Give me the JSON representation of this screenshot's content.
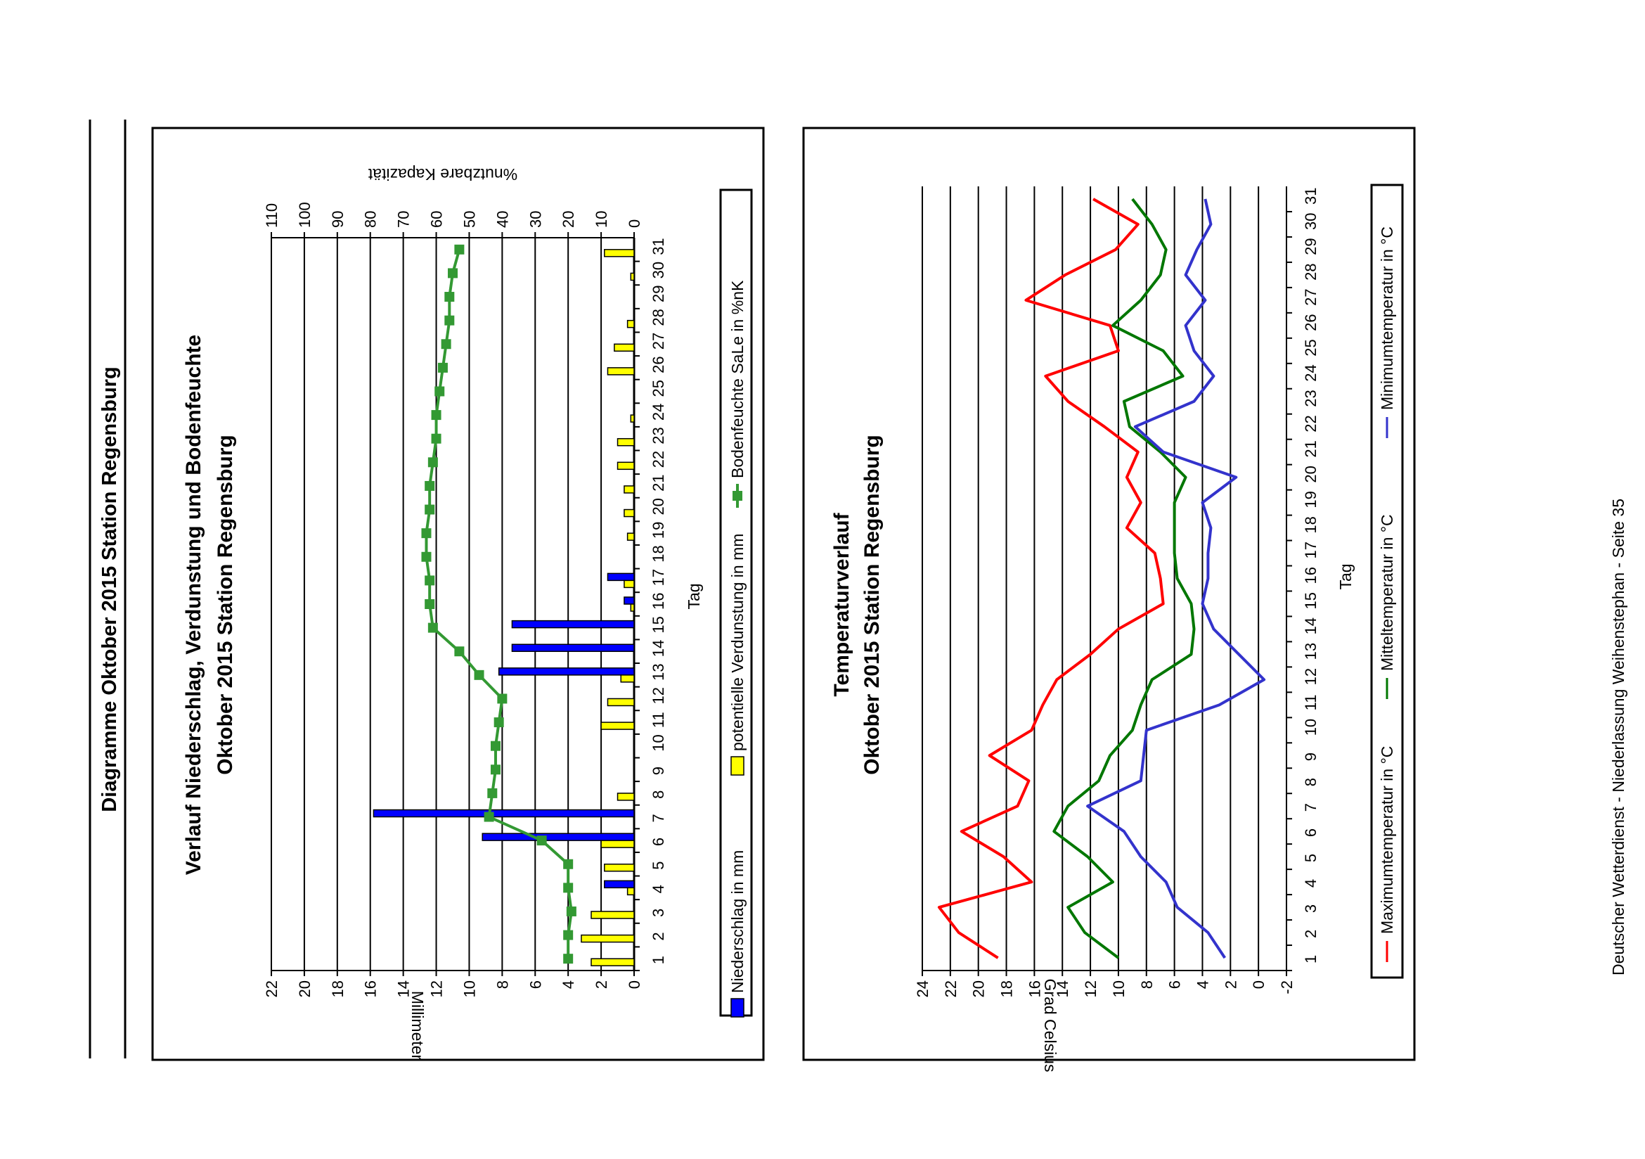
{
  "page": {
    "header_title": "Diagramme Oktober 2015 Station Regensburg",
    "footer": "Deutscher Wetterdienst - Niederlassung Weihenstephan - Seite 35"
  },
  "chart_data": [
    {
      "type": "bar+line",
      "title_line1": "Verlauf Niederschlag, Verdunstung und Bodenfeuchte",
      "title_line2": "Oktober 2015 Station Regensburg",
      "xlabel": "Tag",
      "ylabel": "Millimeter",
      "y2label": "%nutzbare Kapazität",
      "categories": [
        "1",
        "2",
        "3",
        "4",
        "5",
        "6",
        "7",
        "8",
        "9",
        "10",
        "11",
        "12",
        "13",
        "14",
        "15",
        "16",
        "17",
        "18",
        "19",
        "20",
        "21",
        "22",
        "23",
        "24",
        "25",
        "26",
        "27",
        "28",
        "29",
        "30",
        "31"
      ],
      "ylim": [
        0,
        22
      ],
      "yticks": [
        0,
        2,
        4,
        6,
        8,
        10,
        12,
        14,
        16,
        18,
        20,
        22
      ],
      "y2lim": [
        0,
        110
      ],
      "y2ticks": [
        0,
        10,
        20,
        30,
        40,
        50,
        60,
        70,
        80,
        90,
        100,
        110
      ],
      "series": [
        {
          "name": "Niederschlag in mm",
          "kind": "bar",
          "color": "#0000ff",
          "values": [
            0,
            0,
            0,
            1.8,
            0,
            9.2,
            15.8,
            0,
            0,
            0,
            0,
            0,
            8.2,
            7.4,
            7.4,
            0.6,
            1.6,
            0,
            0,
            0,
            0,
            0,
            0,
            0,
            0,
            0,
            0,
            0,
            0,
            0,
            0
          ]
        },
        {
          "name": "potentielle Verdunstung in mm",
          "kind": "bar",
          "color": "#ffff00",
          "values": [
            2.6,
            3.2,
            2.6,
            0.4,
            1.8,
            2.0,
            0,
            1.0,
            0,
            0,
            2.0,
            1.6,
            0.8,
            0,
            0,
            0.2,
            0.6,
            0,
            0.4,
            0.6,
            0.6,
            1.0,
            1.0,
            0.2,
            0,
            1.6,
            1.2,
            0.4,
            0,
            0.2,
            1.8
          ]
        },
        {
          "name": "Bodenfeuchte SaLe in %nK",
          "kind": "line",
          "axis": "secondary",
          "color": "#339933",
          "values": [
            20,
            20,
            19,
            20,
            20,
            28,
            44,
            43,
            42,
            42,
            41,
            40,
            47,
            53,
            61,
            62,
            62,
            63,
            63,
            62,
            62,
            61,
            60,
            60,
            59,
            58,
            57,
            56,
            56,
            55,
            53
          ]
        }
      ]
    },
    {
      "type": "line",
      "title_line1": "Temperaturverlauf",
      "title_line2": "Oktober 2015 Station Regensburg",
      "xlabel": "Tag",
      "ylabel": "Grad Celsius",
      "categories": [
        "1",
        "2",
        "3",
        "4",
        "5",
        "6",
        "7",
        "8",
        "9",
        "10",
        "11",
        "12",
        "13",
        "14",
        "15",
        "16",
        "17",
        "18",
        "19",
        "20",
        "21",
        "22",
        "23",
        "24",
        "25",
        "26",
        "27",
        "28",
        "29",
        "30",
        "31"
      ],
      "ylim": [
        -2,
        24
      ],
      "yticks": [
        -2,
        0,
        2,
        4,
        6,
        8,
        10,
        12,
        14,
        16,
        18,
        20,
        22,
        24
      ],
      "series": [
        {
          "name": "Maximumtemperatur in °C",
          "color": "#ff0000",
          "values": [
            18.6,
            21.4,
            22.8,
            16.2,
            18.2,
            21.2,
            17.2,
            16.4,
            19.2,
            16.2,
            15.4,
            14.4,
            12,
            10,
            6.8,
            7,
            7.4,
            9.4,
            8.4,
            9.4,
            8.6,
            11,
            13.6,
            15.2,
            10,
            10.6,
            16.6,
            13.8,
            10.2,
            8.6,
            11.8
          ]
        },
        {
          "name": "Mitteltemperatur in °C",
          "color": "#007700",
          "values": [
            10,
            12.4,
            13.6,
            10.4,
            12.2,
            14.6,
            13.6,
            11.4,
            10.6,
            9,
            8.4,
            7.6,
            4.8,
            4.6,
            4.8,
            5.8,
            6,
            6,
            6,
            5.2,
            7,
            9.2,
            9.6,
            5.4,
            6.8,
            10.4,
            8.4,
            7,
            6.6,
            7.6,
            9
          ]
        },
        {
          "name": "Minimumtemperatur in °C",
          "color": "#3333cc",
          "values": [
            2.4,
            3.6,
            5.8,
            6.6,
            8.4,
            9.6,
            12.2,
            8.4,
            8.2,
            8,
            2.8,
            -0.4,
            1.4,
            3.2,
            4,
            3.6,
            3.6,
            3.4,
            4,
            1.6,
            6.8,
            8.8,
            4.6,
            3.2,
            4.6,
            5.2,
            3.8,
            5.2,
            4.4,
            3.4,
            3.8
          ]
        }
      ]
    }
  ]
}
